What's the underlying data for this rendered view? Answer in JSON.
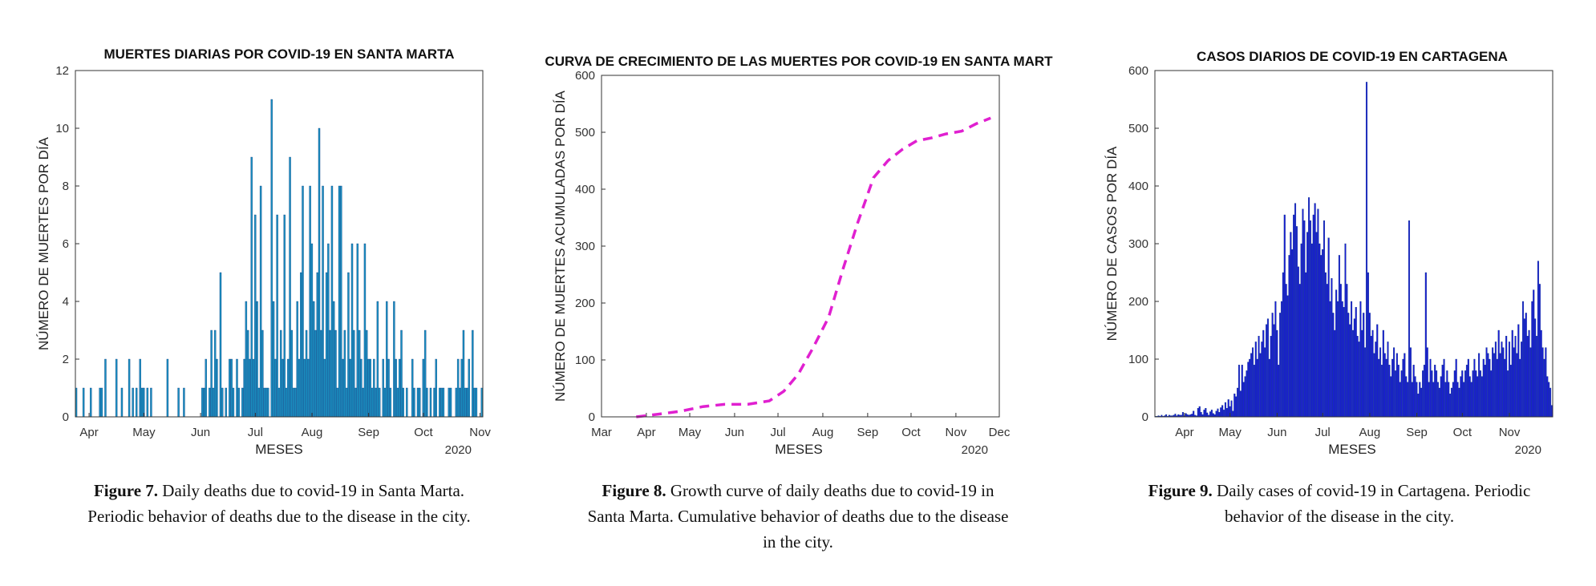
{
  "chart_data": [
    {
      "type": "bar",
      "title": "MUERTES DIARIAS POR COVID-19 EN SANTA MARTA",
      "xlabel": "MESES",
      "ylabel": "NÚMERO DE MUERTES POR DÍA",
      "year_label": "2020",
      "x_ticks": [
        "Apr",
        "May",
        "Jun",
        "Jul",
        "Aug",
        "Sep",
        "Oct",
        "Nov"
      ],
      "y_ticks": [
        "0",
        "2",
        "4",
        "6",
        "8",
        "10",
        "12"
      ],
      "ylim": [
        0,
        12
      ],
      "color": "#1a8fc0",
      "x_start": "2020-03-25",
      "values": [
        1,
        0,
        0,
        0,
        1,
        0,
        0,
        0,
        1,
        0,
        0,
        0,
        0,
        1,
        1,
        0,
        2,
        0,
        0,
        0,
        0,
        0,
        2,
        0,
        0,
        1,
        0,
        0,
        0,
        2,
        0,
        1,
        0,
        1,
        0,
        2,
        1,
        1,
        0,
        1,
        0,
        1,
        0,
        0,
        0,
        0,
        0,
        0,
        0,
        0,
        2,
        0,
        0,
        0,
        0,
        0,
        1,
        0,
        0,
        1,
        0,
        0,
        0,
        0,
        0,
        0,
        0,
        0,
        0,
        1,
        1,
        2,
        0,
        1,
        3,
        1,
        3,
        2,
        0,
        5,
        1,
        0,
        1,
        0,
        2,
        2,
        1,
        0,
        2,
        1,
        0,
        1,
        2,
        4,
        3,
        2,
        9,
        2,
        7,
        4,
        1,
        8,
        3,
        1,
        1,
        1,
        0,
        11,
        4,
        2,
        7,
        1,
        3,
        2,
        7,
        1,
        2,
        9,
        3,
        1,
        1,
        4,
        2,
        5,
        8,
        2,
        3,
        2,
        8,
        6,
        4,
        3,
        5,
        10,
        3,
        8,
        2,
        5,
        6,
        3,
        8,
        4,
        3,
        1,
        8,
        8,
        2,
        3,
        1,
        5,
        2,
        6,
        3,
        1,
        6,
        3,
        2,
        1,
        6,
        3,
        2,
        2,
        1,
        2,
        1,
        4,
        1,
        0,
        2,
        1,
        4,
        2,
        1,
        0,
        4,
        2,
        1,
        2,
        3,
        1,
        0,
        1,
        0,
        0,
        2,
        1,
        0,
        1,
        1,
        0,
        2,
        3,
        1,
        0,
        1,
        0,
        1,
        2,
        0,
        1,
        1,
        1,
        0,
        0,
        1,
        1,
        0,
        0,
        1,
        2,
        1,
        2,
        3,
        1,
        1,
        2,
        0,
        3,
        1,
        1,
        0,
        0,
        1
      ]
    },
    {
      "type": "line",
      "title": "CURVA DE CRECIMIENTO DE LAS MUERTES POR COVID-19 EN SANTA MART",
      "xlabel": "MESES",
      "ylabel": "NÚMERO DE MUERTES ACUMULADAS POR DÍA",
      "year_label": "2020",
      "x_ticks": [
        "Mar",
        "Apr",
        "May",
        "Jun",
        "Jul",
        "Aug",
        "Sep",
        "Oct",
        "Nov",
        "Dec"
      ],
      "y_ticks": [
        "0",
        "100",
        "200",
        "300",
        "400",
        "500",
        "600"
      ],
      "xlim": [
        "2020-03-01",
        "2020-12-01"
      ],
      "ylim": [
        0,
        600
      ],
      "color": "#e020d0",
      "line_style": "dashed",
      "x": [
        "2020-03-25",
        "2020-04-10",
        "2020-04-25",
        "2020-05-10",
        "2020-05-25",
        "2020-06-10",
        "2020-06-25",
        "2020-07-05",
        "2020-07-15",
        "2020-07-25",
        "2020-08-05",
        "2020-08-15",
        "2020-08-25",
        "2020-09-05",
        "2020-09-15",
        "2020-09-25",
        "2020-10-05",
        "2020-10-15",
        "2020-10-25",
        "2020-11-05",
        "2020-11-15",
        "2020-11-25"
      ],
      "y": [
        0,
        5,
        10,
        18,
        22,
        22,
        28,
        45,
        75,
        120,
        175,
        260,
        340,
        420,
        450,
        470,
        485,
        490,
        497,
        502,
        515,
        525
      ]
    },
    {
      "type": "bar",
      "title": "CASOS DIARIOS DE COVID-19 EN CARTAGENA",
      "xlabel": "MESES",
      "ylabel": "NÚMERO DE CASOS POR DÍA",
      "year_label": "2020",
      "x_ticks": [
        "Apr",
        "May",
        "Jun",
        "Jul",
        "Aug",
        "Sep",
        "Oct",
        "Nov"
      ],
      "y_ticks": [
        "0",
        "100",
        "200",
        "300",
        "400",
        "500",
        "600"
      ],
      "ylim": [
        0,
        600
      ],
      "color": "#1a1ad8",
      "x_start": "2020-03-13",
      "values": [
        1,
        1,
        2,
        1,
        3,
        1,
        2,
        4,
        1,
        3,
        2,
        2,
        3,
        5,
        2,
        4,
        3,
        3,
        8,
        2,
        6,
        4,
        3,
        4,
        5,
        10,
        3,
        2,
        15,
        18,
        8,
        4,
        12,
        15,
        7,
        3,
        9,
        12,
        6,
        4,
        10,
        14,
        8,
        16,
        20,
        12,
        25,
        15,
        30,
        18,
        28,
        10,
        40,
        35,
        50,
        90,
        45,
        90,
        60,
        70,
        80,
        95,
        100,
        110,
        120,
        90,
        130,
        100,
        140,
        110,
        130,
        150,
        120,
        160,
        170,
        100,
        140,
        180,
        160,
        200,
        150,
        90,
        180,
        200,
        250,
        350,
        230,
        210,
        280,
        320,
        290,
        350,
        370,
        330,
        260,
        230,
        300,
        360,
        340,
        250,
        320,
        380,
        340,
        300,
        350,
        370,
        320,
        360,
        300,
        280,
        290,
        340,
        250,
        230,
        310,
        200,
        240,
        180,
        150,
        220,
        200,
        280,
        230,
        200,
        190,
        300,
        230,
        180,
        160,
        200,
        150,
        170,
        190,
        140,
        130,
        200,
        150,
        180,
        120,
        580,
        250,
        180,
        140,
        150,
        110,
        130,
        160,
        100,
        120,
        90,
        150,
        110,
        100,
        130,
        90,
        70,
        100,
        120,
        80,
        110,
        90,
        60,
        80,
        100,
        110,
        70,
        60,
        340,
        120,
        60,
        90,
        70,
        60,
        40,
        60,
        50,
        80,
        90,
        250,
        120,
        60,
        100,
        80,
        60,
        90,
        80,
        60,
        50,
        70,
        90,
        100,
        60,
        80,
        60,
        40,
        50,
        60,
        80,
        100,
        60,
        50,
        70,
        80,
        60,
        80,
        90,
        100,
        70,
        60,
        80,
        100,
        80,
        70,
        110,
        80,
        70,
        100,
        90,
        120,
        110,
        100,
        80,
        120,
        110,
        130,
        100,
        150,
        110,
        130,
        120,
        100,
        140,
        80,
        130,
        90,
        150,
        120,
        140,
        110,
        160,
        100,
        130,
        200,
        170,
        180,
        140,
        150,
        120,
        200,
        220,
        170,
        140,
        270,
        230,
        150,
        120,
        100,
        120,
        70,
        60,
        50,
        20
      ]
    }
  ],
  "captions": [
    {
      "label": "Figure 7.",
      "line1": " Daily deaths due to covid-19 in Santa Marta.",
      "line2": "Periodic behavior of deaths due to the disease in the city."
    },
    {
      "label": "Figure 8.",
      "line1": " Growth curve of daily deaths due to covid-19 in",
      "line2": "Santa Marta. Cumulative behavior of deaths due to the disease",
      "line3": "in the city."
    },
    {
      "label": "Figure 9.",
      "line1": " Daily cases of covid-19 in Cartagena. Periodic",
      "line2": "behavior of the disease in the city."
    }
  ]
}
